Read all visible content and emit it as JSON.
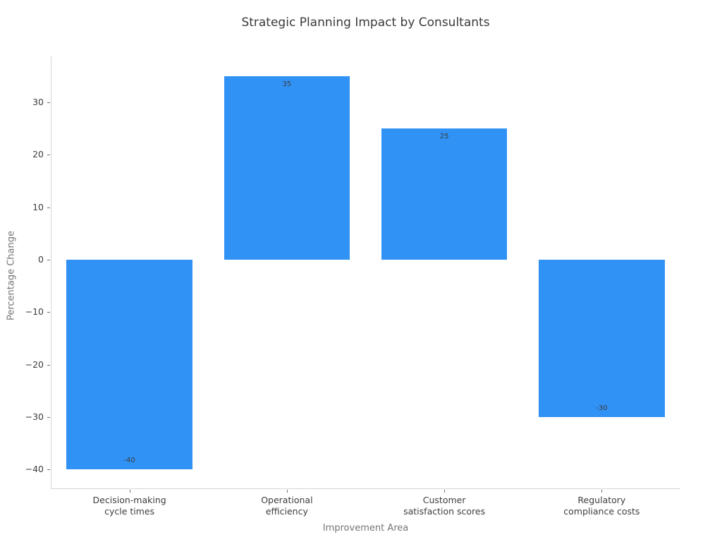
{
  "chart_data": {
    "type": "bar",
    "title": "Strategic Planning Impact by Consultants",
    "xlabel": "Improvement Area",
    "ylabel": "Percentage Change",
    "categories": [
      "Decision-making\ncycle times",
      "Operational\nefficiency",
      "Customer\nsatisfaction scores",
      "Regulatory\ncompliance costs"
    ],
    "values": [
      -40,
      35,
      25,
      -30
    ],
    "value_labels": [
      "-40",
      "35",
      "25",
      "-30"
    ],
    "yticks": [
      -40,
      -30,
      -20,
      -10,
      0,
      10,
      20,
      30
    ],
    "ylim": [
      -43.75,
      38.75
    ],
    "bar_width_frac": 0.8,
    "bar_color": "#3192f5",
    "grid": false,
    "legend_position": "none"
  },
  "colors": {
    "background": "#ffffff",
    "spine": "#d6d6d6",
    "tick_mark": "#6e6e6e",
    "tick_label": "#3d3d3d",
    "axis_title": "#757575",
    "chart_title": "#3a3a3a",
    "bar": "#3192f5",
    "value_label": "#3d3d3d"
  }
}
